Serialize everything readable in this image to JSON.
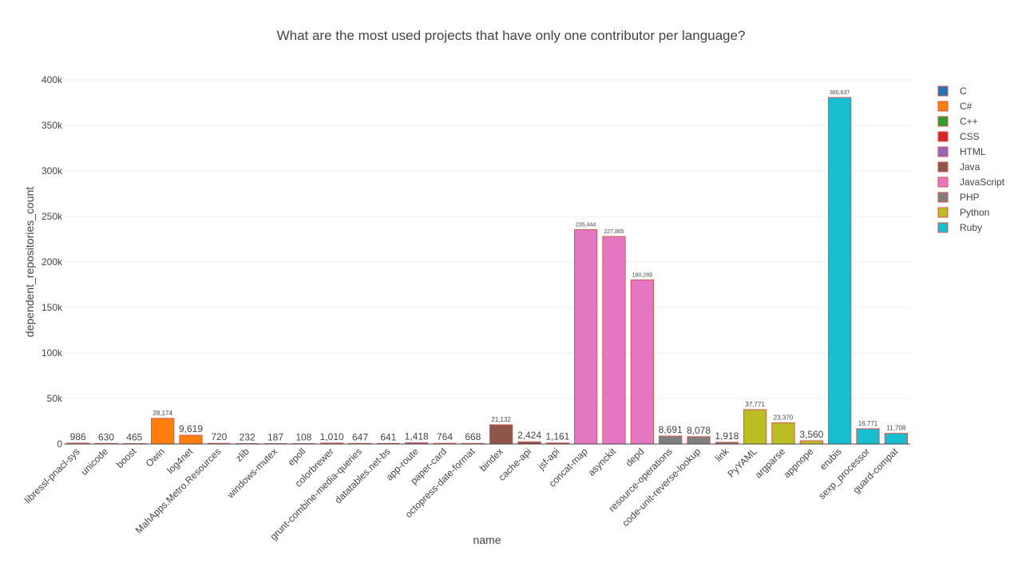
{
  "chart_data": {
    "type": "bar",
    "title": "What are the most used projects that have only one contributor per language?",
    "xlabel": "name",
    "ylabel": "dependent_repositories_count",
    "ylim": [
      0,
      400000
    ],
    "yticks": [
      0,
      50000,
      100000,
      150000,
      200000,
      250000,
      300000,
      350000,
      400000
    ],
    "ytick_labels": [
      "0",
      "50k",
      "100k",
      "150k",
      "200k",
      "250k",
      "300k",
      "350k",
      "400k"
    ],
    "grid": true,
    "legend_position": "right",
    "languages": [
      {
        "name": "C",
        "color": "#1f77b4"
      },
      {
        "name": "C#",
        "color": "#ff7f0e"
      },
      {
        "name": "C++",
        "color": "#2ca02c"
      },
      {
        "name": "CSS",
        "color": "#d62728"
      },
      {
        "name": "HTML",
        "color": "#9467bd"
      },
      {
        "name": "Java",
        "color": "#8c564b"
      },
      {
        "name": "JavaScript",
        "color": "#e377c2"
      },
      {
        "name": "PHP",
        "color": "#7f7f7f"
      },
      {
        "name": "Python",
        "color": "#bcbd22"
      },
      {
        "name": "Ruby",
        "color": "#17becf"
      }
    ],
    "bars": [
      {
        "name": "libressl-pnacl-sys",
        "language": "C",
        "value": 986,
        "label": "986"
      },
      {
        "name": "unicode",
        "language": "C",
        "value": 630,
        "label": "630"
      },
      {
        "name": "boost",
        "language": "C",
        "value": 465,
        "label": "465"
      },
      {
        "name": "Owin",
        "language": "C#",
        "value": 28174,
        "label": "28,174"
      },
      {
        "name": "log4net",
        "language": "C#",
        "value": 9619,
        "label": "9,619"
      },
      {
        "name": "MahApps.Metro.Resources",
        "language": "C#",
        "value": 720,
        "label": "720"
      },
      {
        "name": "zlib",
        "language": "C++",
        "value": 232,
        "label": "232"
      },
      {
        "name": "windows-mutex",
        "language": "C++",
        "value": 187,
        "label": "187"
      },
      {
        "name": "epoll",
        "language": "C++",
        "value": 108,
        "label": "108"
      },
      {
        "name": "colorbrewer",
        "language": "CSS",
        "value": 1010,
        "label": "1,010"
      },
      {
        "name": "grunt-combine-media-queries",
        "language": "CSS",
        "value": 647,
        "label": "647"
      },
      {
        "name": "datatables.net-bs",
        "language": "CSS",
        "value": 641,
        "label": "641"
      },
      {
        "name": "app-route",
        "language": "HTML",
        "value": 1418,
        "label": "1,418"
      },
      {
        "name": "paper-card",
        "language": "HTML",
        "value": 764,
        "label": "764"
      },
      {
        "name": "octopress-date-format",
        "language": "HTML",
        "value": 668,
        "label": "668"
      },
      {
        "name": "bindex",
        "language": "Java",
        "value": 21132,
        "label": "21,132"
      },
      {
        "name": "cache-api",
        "language": "Java",
        "value": 2424,
        "label": "2,424"
      },
      {
        "name": "jsf-api",
        "language": "Java",
        "value": 1161,
        "label": "1,161"
      },
      {
        "name": "concat-map",
        "language": "JavaScript",
        "value": 235444,
        "label": "235,444"
      },
      {
        "name": "asynckit",
        "language": "JavaScript",
        "value": 227865,
        "label": "227,865"
      },
      {
        "name": "depd",
        "language": "JavaScript",
        "value": 180289,
        "label": "180,289"
      },
      {
        "name": "resource-operations",
        "language": "PHP",
        "value": 8691,
        "label": "8,691"
      },
      {
        "name": "code-unit-reverse-lookup",
        "language": "PHP",
        "value": 8078,
        "label": "8,078"
      },
      {
        "name": "link",
        "language": "PHP",
        "value": 1918,
        "label": "1,918"
      },
      {
        "name": "PyYAML",
        "language": "Python",
        "value": 37771,
        "label": "37,771"
      },
      {
        "name": "argparse",
        "language": "Python",
        "value": 23370,
        "label": "23,370"
      },
      {
        "name": "appnope",
        "language": "Python",
        "value": 3560,
        "label": "3,560"
      },
      {
        "name": "erubis",
        "language": "Ruby",
        "value": 380637,
        "label": "380,637"
      },
      {
        "name": "sexp_processor",
        "language": "Ruby",
        "value": 16771,
        "label": "16,771"
      },
      {
        "name": "guard-compat",
        "language": "Ruby",
        "value": 11708,
        "label": "11,708"
      }
    ]
  }
}
